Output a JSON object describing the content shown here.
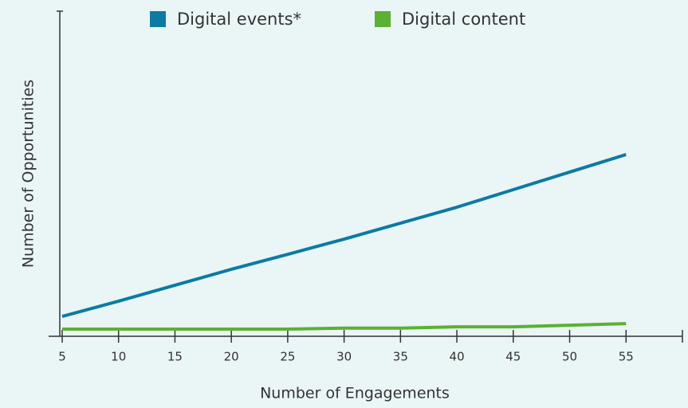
{
  "chart_data": {
    "type": "line",
    "x": [
      5,
      10,
      15,
      20,
      25,
      30,
      35,
      40,
      45,
      50,
      55
    ],
    "series": [
      {
        "name": "Digital events*",
        "color": "#0b7ba3",
        "values": [
          6.1,
          10.8,
          15.7,
          20.6,
          25.2,
          29.9,
          34.8,
          39.7,
          45.1,
          50.5,
          55.9
        ]
      },
      {
        "name": "Digital content",
        "color": "#5bb132",
        "values": [
          2.2,
          2.2,
          2.2,
          2.2,
          2.2,
          2.5,
          2.5,
          2.9,
          2.9,
          3.4,
          3.9
        ]
      }
    ],
    "xlabel": "Number of Engagements",
    "ylabel": "Number of Opportunities",
    "xlim": [
      3.8,
      60
    ],
    "ylim": [
      0,
      100
    ],
    "xticks": [
      5,
      10,
      15,
      20,
      25,
      30,
      35,
      40,
      45,
      50,
      55
    ],
    "legend": "top"
  }
}
